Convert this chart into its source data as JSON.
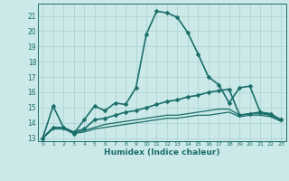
{
  "xlabel": "Humidex (Indice chaleur)",
  "bg_color": "#cce9e9",
  "grid_color": "#add4d4",
  "line_color": "#1a6e6a",
  "xlim": [
    -0.5,
    23.5
  ],
  "ylim": [
    12.8,
    21.8
  ],
  "yticks": [
    13,
    14,
    15,
    16,
    17,
    18,
    19,
    20,
    21
  ],
  "xticks": [
    0,
    1,
    2,
    3,
    4,
    5,
    6,
    7,
    8,
    9,
    10,
    11,
    12,
    13,
    14,
    15,
    16,
    17,
    18,
    19,
    20,
    21,
    22,
    23
  ],
  "series": [
    {
      "x": [
        0,
        1,
        2,
        3,
        4,
        5,
        6,
        7,
        8,
        9,
        10,
        11,
        12,
        13,
        14,
        15,
        16,
        17,
        18,
        19,
        20,
        21,
        22,
        23
      ],
      "y": [
        13.0,
        15.1,
        13.7,
        13.3,
        14.2,
        15.1,
        14.8,
        15.3,
        15.2,
        16.3,
        19.8,
        21.3,
        21.2,
        20.9,
        19.9,
        18.5,
        17.0,
        16.5,
        15.3,
        16.3,
        16.4,
        14.7,
        14.6,
        14.2
      ],
      "marker": true,
      "linewidth": 1.2,
      "markersize": 2.5
    },
    {
      "x": [
        0,
        1,
        2,
        3,
        4,
        5,
        6,
        7,
        8,
        9,
        10,
        11,
        12,
        13,
        14,
        15,
        16,
        17,
        18,
        19,
        20,
        21,
        22,
        23
      ],
      "y": [
        13.0,
        13.7,
        13.7,
        13.4,
        13.6,
        14.2,
        14.3,
        14.5,
        14.7,
        14.8,
        15.0,
        15.2,
        15.4,
        15.5,
        15.7,
        15.8,
        16.0,
        16.1,
        16.2,
        14.5,
        14.6,
        14.7,
        14.5,
        14.2
      ],
      "marker": true,
      "linewidth": 1.2,
      "markersize": 2.5
    },
    {
      "x": [
        0,
        1,
        2,
        3,
        4,
        5,
        6,
        7,
        8,
        9,
        10,
        11,
        12,
        13,
        14,
        15,
        16,
        17,
        18,
        19,
        20,
        21,
        22,
        23
      ],
      "y": [
        13.0,
        13.7,
        13.7,
        13.3,
        13.5,
        13.7,
        13.9,
        14.0,
        14.1,
        14.2,
        14.3,
        14.4,
        14.5,
        14.5,
        14.6,
        14.7,
        14.8,
        14.9,
        14.9,
        14.5,
        14.6,
        14.6,
        14.5,
        14.2
      ],
      "marker": false,
      "linewidth": 0.9,
      "markersize": 0
    },
    {
      "x": [
        0,
        1,
        2,
        3,
        4,
        5,
        6,
        7,
        8,
        9,
        10,
        11,
        12,
        13,
        14,
        15,
        16,
        17,
        18,
        19,
        20,
        21,
        22,
        23
      ],
      "y": [
        13.0,
        13.6,
        13.6,
        13.3,
        13.4,
        13.6,
        13.7,
        13.8,
        13.9,
        14.0,
        14.1,
        14.2,
        14.3,
        14.3,
        14.4,
        14.5,
        14.5,
        14.6,
        14.7,
        14.4,
        14.5,
        14.5,
        14.4,
        14.1
      ],
      "marker": false,
      "linewidth": 0.9,
      "markersize": 0
    }
  ]
}
